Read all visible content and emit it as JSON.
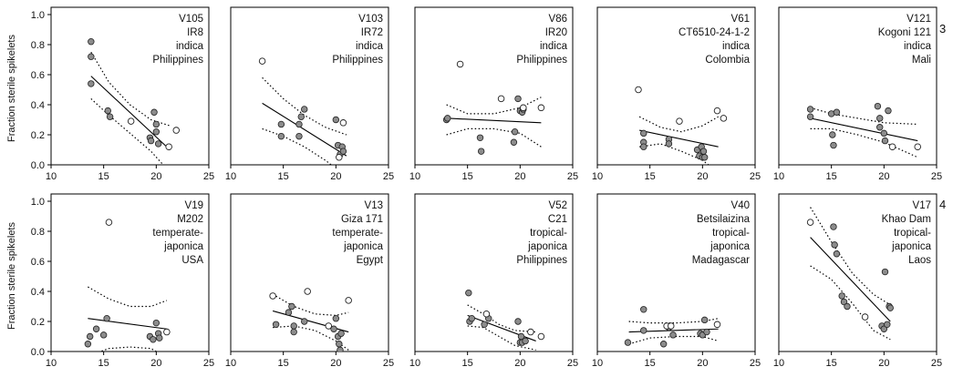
{
  "figure": {
    "ylabel": "Fraction sterile spikelets",
    "row_labels": [
      "3",
      "4"
    ]
  },
  "chart_data": [
    {
      "type": "scatter",
      "id": "V105",
      "labels": [
        "V105",
        "IR8",
        "indica",
        "Philippines"
      ],
      "xlim": [
        10,
        25
      ],
      "ylim": [
        0,
        1.0
      ],
      "xticks": [
        10,
        15,
        20,
        25
      ],
      "yticks": [
        0,
        0.2,
        0.4,
        0.6,
        0.8,
        1.0
      ],
      "filled": [
        [
          13.8,
          0.82
        ],
        [
          13.8,
          0.72
        ],
        [
          13.8,
          0.54
        ],
        [
          15.4,
          0.36
        ],
        [
          15.6,
          0.32
        ],
        [
          19.4,
          0.18
        ],
        [
          19.5,
          0.16
        ],
        [
          19.8,
          0.35
        ],
        [
          20.0,
          0.27
        ],
        [
          20.0,
          0.22
        ],
        [
          20.2,
          0.14
        ]
      ],
      "open": [
        [
          17.6,
          0.29
        ],
        [
          21.2,
          0.12
        ],
        [
          21.9,
          0.23
        ]
      ],
      "fit": {
        "x": [
          13.8,
          21.3
        ],
        "y": [
          0.59,
          0.1
        ]
      },
      "ci_upper": [
        [
          13.8,
          0.75
        ],
        [
          15.5,
          0.55
        ],
        [
          17.5,
          0.4
        ],
        [
          19.5,
          0.3
        ],
        [
          21.3,
          0.26
        ]
      ],
      "ci_lower": [
        [
          13.8,
          0.44
        ],
        [
          15.5,
          0.33
        ],
        [
          17.5,
          0.21
        ],
        [
          19.5,
          0.09
        ],
        [
          21.3,
          -0.05
        ]
      ]
    },
    {
      "type": "scatter",
      "id": "V103",
      "labels": [
        "V103",
        "IR72",
        "indica",
        "Philippines"
      ],
      "xlim": [
        10,
        25
      ],
      "ylim": [
        0,
        1.0
      ],
      "xticks": [
        10,
        15,
        20,
        25
      ],
      "yticks": [
        0,
        0.2,
        0.4,
        0.6,
        0.8,
        1.0
      ],
      "filled": [
        [
          14.8,
          0.27
        ],
        [
          14.8,
          0.19
        ],
        [
          16.5,
          0.27
        ],
        [
          16.5,
          0.19
        ],
        [
          16.7,
          0.32
        ],
        [
          17.0,
          0.37
        ],
        [
          20.0,
          0.3
        ],
        [
          20.2,
          0.13
        ],
        [
          20.4,
          0.07
        ],
        [
          20.6,
          0.12
        ],
        [
          20.7,
          0.09
        ]
      ],
      "open": [
        [
          13.0,
          0.69
        ],
        [
          20.7,
          0.28
        ],
        [
          20.3,
          0.05
        ]
      ],
      "fit": {
        "x": [
          13.0,
          21.0
        ],
        "y": [
          0.41,
          0.06
        ]
      },
      "ci_upper": [
        [
          13.0,
          0.58
        ],
        [
          15.0,
          0.44
        ],
        [
          17.0,
          0.33
        ],
        [
          19.0,
          0.25
        ],
        [
          21.0,
          0.2
        ]
      ],
      "ci_lower": [
        [
          13.0,
          0.24
        ],
        [
          15.0,
          0.19
        ],
        [
          17.0,
          0.12
        ],
        [
          19.0,
          0.03
        ],
        [
          21.0,
          -0.08
        ]
      ]
    },
    {
      "type": "scatter",
      "id": "V86",
      "labels": [
        "V86",
        "IR20",
        "indica",
        "Philippines"
      ],
      "xlim": [
        10,
        25
      ],
      "ylim": [
        0,
        1.0
      ],
      "xticks": [
        10,
        15,
        20,
        25
      ],
      "yticks": [
        0,
        0.2,
        0.4,
        0.6,
        0.8,
        1.0
      ],
      "filled": [
        [
          13.0,
          0.3
        ],
        [
          13.1,
          0.31
        ],
        [
          16.2,
          0.18
        ],
        [
          16.3,
          0.09
        ],
        [
          19.4,
          0.15
        ],
        [
          19.5,
          0.22
        ],
        [
          19.8,
          0.44
        ],
        [
          20.0,
          0.36
        ],
        [
          20.2,
          0.35
        ],
        [
          20.3,
          0.37
        ]
      ],
      "open": [
        [
          14.3,
          0.67
        ],
        [
          18.2,
          0.44
        ],
        [
          20.3,
          0.38
        ],
        [
          22.0,
          0.38
        ]
      ],
      "fit": {
        "x": [
          13.0,
          22.0
        ],
        "y": [
          0.31,
          0.28
        ]
      },
      "ci_upper": [
        [
          13.0,
          0.4
        ],
        [
          15.0,
          0.34
        ],
        [
          17.5,
          0.34
        ],
        [
          20.0,
          0.38
        ],
        [
          22.0,
          0.45
        ]
      ],
      "ci_lower": [
        [
          13.0,
          0.2
        ],
        [
          15.0,
          0.24
        ],
        [
          17.5,
          0.24
        ],
        [
          20.0,
          0.21
        ],
        [
          22.0,
          0.12
        ]
      ]
    },
    {
      "type": "scatter",
      "id": "V61",
      "labels": [
        "V61",
        "CT6510-24-1-2",
        "indica",
        "Colombia"
      ],
      "xlim": [
        10,
        25
      ],
      "ylim": [
        0,
        1.0
      ],
      "xticks": [
        10,
        15,
        20,
        25
      ],
      "yticks": [
        0,
        0.2,
        0.4,
        0.6,
        0.8,
        1.0
      ],
      "filled": [
        [
          14.4,
          0.21
        ],
        [
          14.4,
          0.15
        ],
        [
          14.4,
          0.12
        ],
        [
          16.8,
          0.17
        ],
        [
          16.8,
          0.14
        ],
        [
          19.5,
          0.1
        ],
        [
          19.7,
          0.06
        ],
        [
          19.9,
          0.12
        ],
        [
          20.0,
          0.05
        ],
        [
          20.1,
          0.09
        ],
        [
          20.2,
          0.05
        ]
      ],
      "open": [
        [
          13.9,
          0.5
        ],
        [
          17.8,
          0.29
        ],
        [
          21.4,
          0.36
        ],
        [
          22.0,
          0.31
        ]
      ],
      "fit": {
        "x": [
          14.0,
          21.5
        ],
        "y": [
          0.23,
          0.12
        ]
      },
      "ci_upper": [
        [
          14.0,
          0.32
        ],
        [
          16.0,
          0.25
        ],
        [
          18.0,
          0.22
        ],
        [
          20.0,
          0.26
        ],
        [
          21.5,
          0.32
        ]
      ],
      "ci_lower": [
        [
          14.0,
          0.12
        ],
        [
          16.0,
          0.14
        ],
        [
          18.0,
          0.09
        ],
        [
          20.0,
          0.03
        ],
        [
          21.5,
          -0.05
        ]
      ]
    },
    {
      "type": "scatter",
      "id": "V121",
      "labels": [
        "V121",
        "Kogoni 121",
        "indica",
        "Mali"
      ],
      "xlim": [
        10,
        25
      ],
      "ylim": [
        0,
        1.0
      ],
      "xticks": [
        10,
        15,
        20,
        25
      ],
      "yticks": [
        0,
        0.2,
        0.4,
        0.6,
        0.8,
        1.0
      ],
      "filled": [
        [
          13.0,
          0.37
        ],
        [
          13.0,
          0.32
        ],
        [
          15.0,
          0.34
        ],
        [
          15.1,
          0.2
        ],
        [
          15.2,
          0.13
        ],
        [
          15.5,
          0.35
        ],
        [
          19.4,
          0.39
        ],
        [
          19.6,
          0.31
        ],
        [
          19.6,
          0.25
        ],
        [
          20.0,
          0.21
        ],
        [
          20.1,
          0.16
        ],
        [
          20.4,
          0.36
        ]
      ],
      "open": [
        [
          20.8,
          0.12
        ],
        [
          23.2,
          0.12
        ]
      ],
      "fit": {
        "x": [
          13.0,
          23.2
        ],
        "y": [
          0.31,
          0.16
        ]
      },
      "ci_upper": [
        [
          13.0,
          0.38
        ],
        [
          15.0,
          0.34
        ],
        [
          17.5,
          0.31
        ],
        [
          20.0,
          0.28
        ],
        [
          23.2,
          0.27
        ]
      ],
      "ci_lower": [
        [
          13.0,
          0.24
        ],
        [
          15.0,
          0.24
        ],
        [
          17.5,
          0.2
        ],
        [
          20.0,
          0.15
        ],
        [
          23.2,
          0.05
        ]
      ]
    },
    {
      "type": "scatter",
      "id": "V19",
      "labels": [
        "V19",
        "M202",
        "temperate-",
        "japonica",
        "USA"
      ],
      "xlim": [
        10,
        25
      ],
      "ylim": [
        0,
        1.0
      ],
      "xticks": [
        10,
        15,
        20,
        25
      ],
      "yticks": [
        0,
        0.2,
        0.4,
        0.6,
        0.8,
        1.0
      ],
      "filled": [
        [
          13.5,
          0.05
        ],
        [
          13.7,
          0.1
        ],
        [
          14.3,
          0.15
        ],
        [
          15.0,
          0.11
        ],
        [
          15.3,
          0.22
        ],
        [
          19.4,
          0.1
        ],
        [
          19.7,
          0.08
        ],
        [
          20.0,
          0.19
        ],
        [
          20.2,
          0.12
        ],
        [
          20.3,
          0.09
        ]
      ],
      "open": [
        [
          15.5,
          0.86
        ],
        [
          21.0,
          0.13
        ]
      ],
      "fit": {
        "x": [
          13.5,
          21.0
        ],
        "y": [
          0.22,
          0.15
        ]
      },
      "ci_upper": [
        [
          13.5,
          0.43
        ],
        [
          15.5,
          0.35
        ],
        [
          17.5,
          0.3
        ],
        [
          19.5,
          0.3
        ],
        [
          21.0,
          0.34
        ]
      ],
      "ci_lower": [
        [
          13.5,
          -0.03
        ],
        [
          15.5,
          0.02
        ],
        [
          17.5,
          0.03
        ],
        [
          19.5,
          0.02
        ],
        [
          21.0,
          -0.04
        ]
      ]
    },
    {
      "type": "scatter",
      "id": "V13",
      "labels": [
        "V13",
        "Giza 171",
        "temperate-",
        "japonica",
        "Egypt"
      ],
      "xlim": [
        10,
        25
      ],
      "ylim": [
        0,
        1.0
      ],
      "xticks": [
        10,
        15,
        20,
        25
      ],
      "yticks": [
        0,
        0.2,
        0.4,
        0.6,
        0.8,
        1.0
      ],
      "filled": [
        [
          14.3,
          0.18
        ],
        [
          15.5,
          0.26
        ],
        [
          15.8,
          0.3
        ],
        [
          16.0,
          0.17
        ],
        [
          16.0,
          0.13
        ],
        [
          17.0,
          0.2
        ],
        [
          19.8,
          0.15
        ],
        [
          20.0,
          0.22
        ],
        [
          20.2,
          0.1
        ],
        [
          20.3,
          0.05
        ],
        [
          20.4,
          0.01
        ],
        [
          20.5,
          0.12
        ]
      ],
      "open": [
        [
          14.0,
          0.37
        ],
        [
          17.3,
          0.4
        ],
        [
          19.3,
          0.17
        ],
        [
          21.2,
          0.34
        ]
      ],
      "fit": {
        "x": [
          14.0,
          21.2
        ],
        "y": [
          0.27,
          0.13
        ]
      },
      "ci_upper": [
        [
          14.0,
          0.38
        ],
        [
          16.0,
          0.3
        ],
        [
          18.0,
          0.25
        ],
        [
          20.0,
          0.24
        ],
        [
          21.2,
          0.26
        ]
      ],
      "ci_lower": [
        [
          14.0,
          0.16
        ],
        [
          16.0,
          0.17
        ],
        [
          18.0,
          0.14
        ],
        [
          20.0,
          0.07
        ],
        [
          21.2,
          0.01
        ]
      ]
    },
    {
      "type": "scatter",
      "id": "V52",
      "labels": [
        "V52",
        "C21",
        "tropical-",
        "japonica",
        "Philippines"
      ],
      "xlim": [
        10,
        25
      ],
      "ylim": [
        0,
        1.0
      ],
      "xticks": [
        10,
        15,
        20,
        25
      ],
      "yticks": [
        0,
        0.2,
        0.4,
        0.6,
        0.8,
        1.0
      ],
      "filled": [
        [
          15.1,
          0.39
        ],
        [
          15.2,
          0.2
        ],
        [
          15.4,
          0.22
        ],
        [
          16.6,
          0.18
        ],
        [
          17.0,
          0.22
        ],
        [
          19.8,
          0.2
        ],
        [
          20.0,
          0.06
        ],
        [
          20.1,
          0.1
        ],
        [
          20.2,
          0.06
        ],
        [
          20.5,
          0.07
        ]
      ],
      "open": [
        [
          16.8,
          0.25
        ],
        [
          21.0,
          0.13
        ],
        [
          22.0,
          0.1
        ]
      ],
      "fit": {
        "x": [
          15.0,
          21.5
        ],
        "y": [
          0.24,
          0.07
        ]
      },
      "ci_upper": [
        [
          15.0,
          0.31
        ],
        [
          16.5,
          0.25
        ],
        [
          18.0,
          0.18
        ],
        [
          19.5,
          0.14
        ],
        [
          21.5,
          0.13
        ]
      ],
      "ci_lower": [
        [
          15.0,
          0.17
        ],
        [
          16.5,
          0.16
        ],
        [
          18.0,
          0.1
        ],
        [
          19.5,
          0.04
        ],
        [
          21.5,
          0.01
        ]
      ]
    },
    {
      "type": "scatter",
      "id": "V40",
      "labels": [
        "V40",
        "Betsilaizina",
        "tropical-",
        "japonica",
        "Madagascar"
      ],
      "xlim": [
        10,
        25
      ],
      "ylim": [
        0,
        1.0
      ],
      "xticks": [
        10,
        15,
        20,
        25
      ],
      "yticks": [
        0,
        0.2,
        0.4,
        0.6,
        0.8,
        1.0
      ],
      "filled": [
        [
          12.9,
          0.06
        ],
        [
          14.4,
          0.28
        ],
        [
          14.4,
          0.14
        ],
        [
          16.3,
          0.05
        ],
        [
          16.8,
          0.16
        ],
        [
          17.2,
          0.11
        ],
        [
          19.8,
          0.12
        ],
        [
          20.0,
          0.11
        ],
        [
          20.2,
          0.21
        ],
        [
          20.4,
          0.13
        ]
      ],
      "open": [
        [
          16.6,
          0.17
        ],
        [
          17.0,
          0.17
        ],
        [
          21.4,
          0.18
        ]
      ],
      "fit": {
        "x": [
          13.0,
          21.5
        ],
        "y": [
          0.13,
          0.15
        ]
      },
      "ci_upper": [
        [
          13.0,
          0.2
        ],
        [
          15.0,
          0.19
        ],
        [
          17.5,
          0.19
        ],
        [
          20.0,
          0.2
        ],
        [
          21.5,
          0.22
        ]
      ],
      "ci_lower": [
        [
          13.0,
          0.05
        ],
        [
          15.0,
          0.09
        ],
        [
          17.5,
          0.1
        ],
        [
          20.0,
          0.1
        ],
        [
          21.5,
          0.07
        ]
      ]
    },
    {
      "type": "scatter",
      "id": "V17",
      "labels": [
        "V17",
        "Khao Dam",
        "tropical-",
        "japonica",
        "Laos"
      ],
      "xlim": [
        10,
        25
      ],
      "ylim": [
        0,
        1.0
      ],
      "xticks": [
        10,
        15,
        20,
        25
      ],
      "yticks": [
        0,
        0.2,
        0.4,
        0.6,
        0.8,
        1.0
      ],
      "filled": [
        [
          15.2,
          0.83
        ],
        [
          15.3,
          0.71
        ],
        [
          15.5,
          0.65
        ],
        [
          16.0,
          0.37
        ],
        [
          16.2,
          0.33
        ],
        [
          16.5,
          0.3
        ],
        [
          19.8,
          0.17
        ],
        [
          20.0,
          0.15
        ],
        [
          20.1,
          0.53
        ],
        [
          20.3,
          0.18
        ],
        [
          20.5,
          0.3
        ],
        [
          20.6,
          0.29
        ]
      ],
      "open": [
        [
          13.0,
          0.86
        ],
        [
          18.2,
          0.23
        ]
      ],
      "fit": {
        "x": [
          13.0,
          20.6
        ],
        "y": [
          0.76,
          0.2
        ]
      },
      "ci_upper": [
        [
          13.0,
          0.96
        ],
        [
          15.0,
          0.73
        ],
        [
          17.0,
          0.52
        ],
        [
          19.0,
          0.38
        ],
        [
          20.6,
          0.31
        ]
      ],
      "ci_lower": [
        [
          13.0,
          0.57
        ],
        [
          15.0,
          0.48
        ],
        [
          17.0,
          0.32
        ],
        [
          19.0,
          0.14
        ],
        [
          20.6,
          0.08
        ]
      ]
    }
  ]
}
